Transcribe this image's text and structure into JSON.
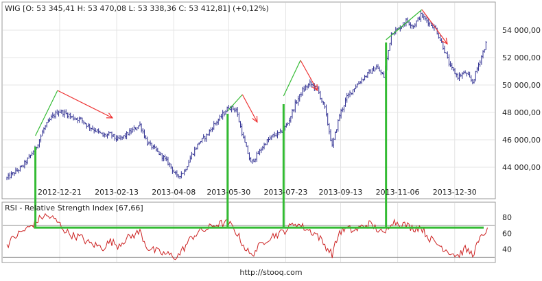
{
  "chart_data": [
    {
      "type": "ohlc",
      "title": "WIG [O: 53 345,41  H: 53 470,08  L: 53 338,36  C: 53 412,81] (+0,12%)",
      "x_tick_labels": [
        "2012-12-21",
        "2013-02-13",
        "2013-04-08",
        "2013-05-30",
        "2013-07-23",
        "2013-09-13",
        "2013-11-06",
        "2013-12-30"
      ],
      "y_tick_labels": [
        "44 000,00",
        "46 000,00",
        "48 000,00",
        "50 000,00",
        "52 000,00",
        "54 000,00"
      ],
      "y_ticks": [
        44000,
        46000,
        48000,
        50000,
        52000,
        54000
      ],
      "ylim": [
        42800,
        55800
      ],
      "xlim": [
        "2012-11-01",
        "2014-01-31"
      ],
      "series": [
        {
          "x": [
            "2012-11-01",
            "2012-11-08",
            "2012-11-15",
            "2012-11-22",
            "2012-11-29",
            "2012-12-06",
            "2012-12-13",
            "2012-12-20",
            "2012-12-27",
            "2013-01-03",
            "2013-01-10",
            "2013-01-17",
            "2013-01-24",
            "2013-01-31",
            "2013-02-07",
            "2013-02-14",
            "2013-02-21",
            "2013-02-28",
            "2013-03-07",
            "2013-03-14",
            "2013-03-21",
            "2013-03-28",
            "2013-04-04",
            "2013-04-11",
            "2013-04-18",
            "2013-04-25",
            "2013-05-02",
            "2013-05-09",
            "2013-05-16",
            "2013-05-23",
            "2013-05-30",
            "2013-06-06",
            "2013-06-13",
            "2013-06-20",
            "2013-06-27",
            "2013-07-04",
            "2013-07-11",
            "2013-07-18",
            "2013-07-25",
            "2013-08-01",
            "2013-08-08",
            "2013-08-15",
            "2013-08-22",
            "2013-08-29",
            "2013-09-05",
            "2013-09-12",
            "2013-09-19",
            "2013-09-26",
            "2013-10-03",
            "2013-10-10",
            "2013-10-17",
            "2013-10-24",
            "2013-10-31",
            "2013-11-07",
            "2013-11-14",
            "2013-11-21",
            "2013-11-28",
            "2013-12-05",
            "2013-12-12",
            "2013-12-19",
            "2013-12-26",
            "2014-01-02",
            "2014-01-09",
            "2014-01-16",
            "2014-01-23",
            "2014-01-30"
          ],
          "close": [
            43200,
            43600,
            44000,
            44700,
            45500,
            46800,
            47600,
            48100,
            47900,
            47600,
            47500,
            47000,
            46700,
            46300,
            46400,
            46000,
            46300,
            46700,
            47100,
            45800,
            45300,
            44800,
            44200,
            43300,
            43700,
            44900,
            45800,
            46300,
            47100,
            47700,
            48400,
            48200,
            46100,
            44300,
            45000,
            45800,
            46300,
            46500,
            47200,
            48600,
            49600,
            50100,
            49700,
            48300,
            45500,
            47800,
            49100,
            49800,
            50400,
            50900,
            51300,
            50600,
            53800,
            54100,
            54700,
            54300,
            55100,
            54600,
            54100,
            52800,
            51300,
            50600,
            50900,
            50200,
            51800,
            53300
          ]
        }
      ]
    },
    {
      "type": "line",
      "title": "RSI - Relative Strength Index [67,66]",
      "y_tick_labels": [
        "80",
        "60",
        "40"
      ],
      "y_ticks": [
        80,
        60,
        40
      ],
      "ylim": [
        26,
        86
      ],
      "reference_lines": [
        70,
        30
      ],
      "series": [
        {
          "x": [
            "2012-11-01",
            "2012-11-08",
            "2012-11-15",
            "2012-11-22",
            "2012-11-29",
            "2012-12-06",
            "2012-12-13",
            "2012-12-20",
            "2012-12-27",
            "2013-01-03",
            "2013-01-10",
            "2013-01-17",
            "2013-01-24",
            "2013-01-31",
            "2013-02-07",
            "2013-02-14",
            "2013-02-21",
            "2013-02-28",
            "2013-03-07",
            "2013-03-14",
            "2013-03-21",
            "2013-03-28",
            "2013-04-04",
            "2013-04-11",
            "2013-04-18",
            "2013-04-25",
            "2013-05-02",
            "2013-05-09",
            "2013-05-16",
            "2013-05-23",
            "2013-05-30",
            "2013-06-06",
            "2013-06-13",
            "2013-06-20",
            "2013-06-27",
            "2013-07-04",
            "2013-07-11",
            "2013-07-18",
            "2013-07-25",
            "2013-08-01",
            "2013-08-08",
            "2013-08-15",
            "2013-08-22",
            "2013-08-29",
            "2013-09-05",
            "2013-09-12",
            "2013-09-19",
            "2013-09-26",
            "2013-10-03",
            "2013-10-10",
            "2013-10-17",
            "2013-10-24",
            "2013-10-31",
            "2013-11-07",
            "2013-11-14",
            "2013-11-21",
            "2013-11-28",
            "2013-12-05",
            "2013-12-12",
            "2013-12-19",
            "2013-12-26",
            "2014-01-02",
            "2014-01-09",
            "2014-01-16",
            "2014-01-23",
            "2014-01-30"
          ],
          "values": [
            45,
            55,
            62,
            67,
            75,
            82,
            80,
            73,
            62,
            57,
            55,
            48,
            45,
            42,
            50,
            45,
            52,
            57,
            62,
            42,
            38,
            35,
            33,
            30,
            42,
            55,
            62,
            65,
            70,
            72,
            73,
            62,
            45,
            32,
            42,
            52,
            57,
            60,
            66,
            73,
            68,
            63,
            58,
            45,
            34,
            62,
            66,
            63,
            68,
            72,
            66,
            58,
            75,
            73,
            70,
            66,
            68,
            55,
            48,
            42,
            36,
            32,
            40,
            34,
            52,
            67
          ]
        }
      ]
    }
  ],
  "annotations": {
    "trend_lines": [
      {
        "color": "#33bb33",
        "from": {
          "x": "2012-11-28",
          "y": 46300
        },
        "to": {
          "x": "2012-12-19",
          "y": 49600
        }
      },
      {
        "color": "#ee3333",
        "from": {
          "x": "2012-12-19",
          "y": 49600
        },
        "to": {
          "x": "2013-02-09",
          "y": 47600
        }
      },
      {
        "color": "#33bb33",
        "from": {
          "x": "2013-05-29",
          "y": 48100
        },
        "to": {
          "x": "2013-06-12",
          "y": 49300
        }
      },
      {
        "color": "#ee3333",
        "from": {
          "x": "2013-06-12",
          "y": 49300
        },
        "to": {
          "x": "2013-06-26",
          "y": 47300
        }
      },
      {
        "color": "#33bb33",
        "from": {
          "x": "2013-07-21",
          "y": 49200
        },
        "to": {
          "x": "2013-08-06",
          "y": 51800
        }
      },
      {
        "color": "#ee3333",
        "from": {
          "x": "2013-08-06",
          "y": 51800
        },
        "to": {
          "x": "2013-08-22",
          "y": 49600
        }
      },
      {
        "color": "#33bb33",
        "from": {
          "x": "2013-10-26",
          "y": 53300
        },
        "to": {
          "x": "2013-11-29",
          "y": 55500
        }
      },
      {
        "color": "#ee3333",
        "from": {
          "x": "2013-11-29",
          "y": 55500
        },
        "to": {
          "x": "2013-12-23",
          "y": 53000
        }
      }
    ],
    "verticals": [
      {
        "x": "2012-11-28",
        "price": 45500
      },
      {
        "x": "2013-05-29",
        "price": 47900
      },
      {
        "x": "2013-07-21",
        "price": 48600
      },
      {
        "x": "2013-10-26",
        "price": 53100
      }
    ],
    "rsi_level": 67,
    "accent_green": "#33bb33",
    "accent_red": "#ee3333",
    "price_color": "#2d2d90",
    "rsi_color": "#cc2222"
  },
  "footer": {
    "url": "http://stooq.com"
  }
}
